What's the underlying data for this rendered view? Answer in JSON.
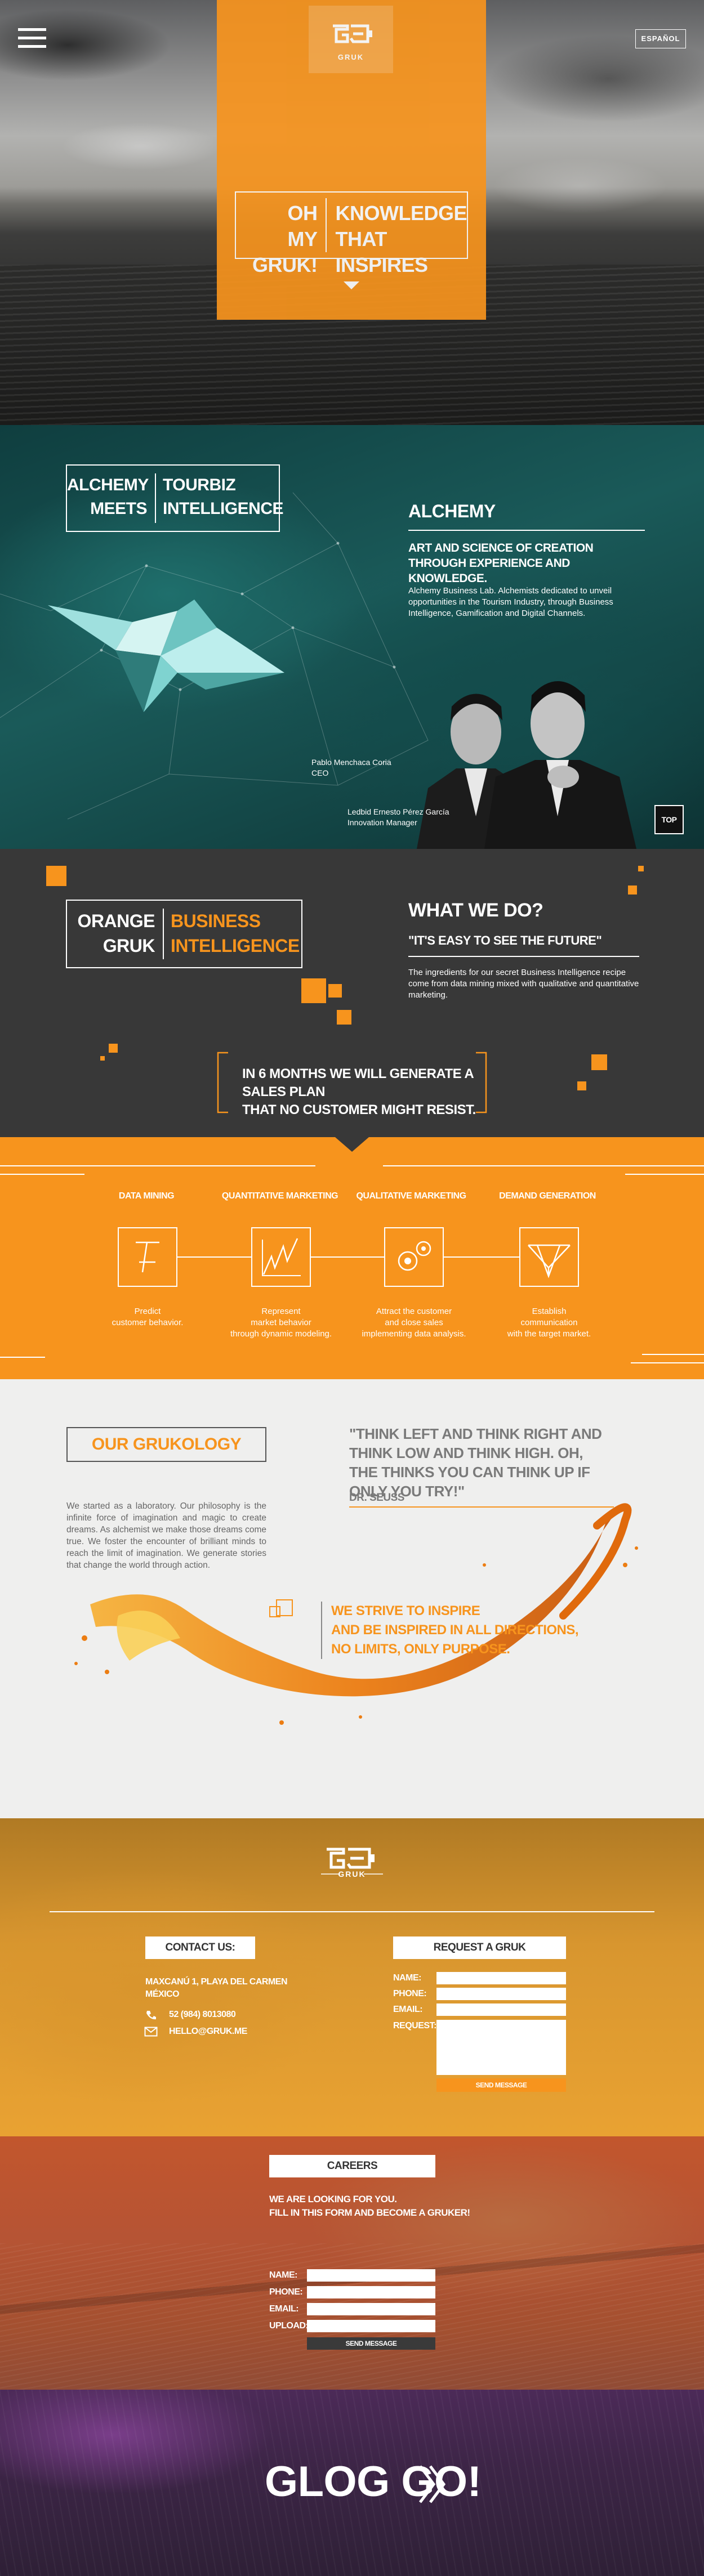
{
  "colors": {
    "accent": "#f7941d",
    "teal": "#1a5a59",
    "dark": "#383838",
    "light_bg": "#efefee"
  },
  "hero": {
    "menu_icon": "hamburger-menu-icon",
    "lang_label": "ESPAÑOL",
    "logo_text": "GRUK",
    "title_left": "OH\nMY GRUK!",
    "title_right": "KNOWLEDGE\nTHAT INSPIRES",
    "scroll_icon": "triangle-down-icon"
  },
  "alchemy": {
    "title_left": "ALCHEMY\nMEETS",
    "title_right": "TOURBIZ\nINTELLIGENCE",
    "heading": "ALCHEMY",
    "subheading": "ART AND SCIENCE OF CREATION\nTHROUGH EXPERIENCE AND KNOWLEDGE.",
    "body": "Alchemy Business Lab. Alchemists dedicated to unveil opportunities in the Tourism Industry, through Business Intelligence, Gamification and Digital Channels.",
    "person1_caption": "Pablo Menchaca Coria\nCEO",
    "person2_caption": "Ledbid Ernesto Pérez García\nInnovation Manager",
    "top_label": "TOP"
  },
  "what": {
    "title_left": "ORANGE\nGRUK",
    "title_right": "BUSINESS\nINTELLIGENCE",
    "heading": "WHAT WE DO?",
    "quote": "\"IT'S EASY TO SEE THE FUTURE\"",
    "body": "The ingredients for our secret Business Intelligence recipe come from data mining mixed with qualitative and quantitative marketing.",
    "plan": "IN 6 MONTHS WE WILL GENERATE A SALES PLAN\nTHAT NO CUSTOMER MIGHT RESIST."
  },
  "services": {
    "items": [
      {
        "title": "DATA MINING",
        "desc": "Predict\ncustomer behavior.",
        "icon": "magnifier-chart-icon"
      },
      {
        "title": "QUANTITATIVE MARKETING",
        "desc": "Represent\nmarket behavior\nthrough dynamic modeling.",
        "icon": "line-graph-icon"
      },
      {
        "title": "QUALITATIVE MARKETING",
        "desc": "Attract the customer\nand close sales\nimplementing data analysis.",
        "icon": "gears-icon"
      },
      {
        "title": "DEMAND GENERATION",
        "desc": "Establish\ncommunication\nwith the target market.",
        "icon": "network-icon"
      }
    ]
  },
  "grukology": {
    "title": "OUR GRUKOLOGY",
    "body": "We started as a laboratory. Our philosophy is the infinite force of imagination and magic to create dreams. As alchemist we make those dreams come true. We foster the encounter of brilliant minds to reach the limit of imagination. We generate stories that change the world through action.",
    "quote": "\"THINK LEFT AND THINK RIGHT AND THINK LOW AND THINK HIGH. OH, THE THINKS YOU CAN THINK UP IF ONLY YOU TRY!\"",
    "author": "DR. SEUSS",
    "strive": "WE STRIVE TO INSPIRE\nAND BE INSPIRED IN ALL DIRECTIONS,\nNO LIMITS, ONLY PURPOSE."
  },
  "contact": {
    "logo_text": "GRUK",
    "contact_heading": "CONTACT US:",
    "address": "MAXCANÚ 1, PLAYA DEL CARMEN\nMÉXICO",
    "phone": "52 (984) 8013080",
    "email": "HELLO@GRUK.ME",
    "request_heading": "REQUEST A GRUK",
    "labels": {
      "name": "NAME:",
      "phone": "PHONE:",
      "email": "EMAIL:",
      "request": "REQUEST:"
    },
    "send_label": "SEND MESSAGE"
  },
  "careers": {
    "heading": "CAREERS",
    "intro": "WE ARE LOOKING FOR YOU.\nFILL IN THIS FORM AND BECOME A GRUKER!",
    "labels": {
      "name": "NAME:",
      "phone": "PHONE:",
      "email": "EMAIL:",
      "upload": "UPLOAD:"
    },
    "send_label": "SEND MESSAGE"
  },
  "glog": {
    "label": "GLOG GO!"
  }
}
